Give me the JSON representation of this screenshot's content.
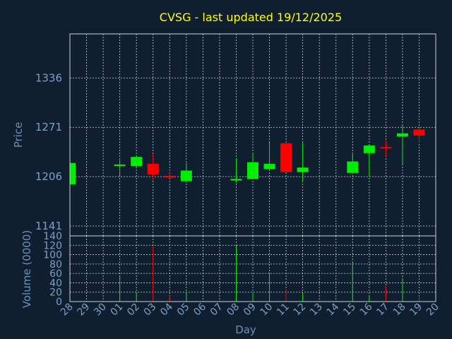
{
  "chart_data": [
    {
      "type": "candlestick",
      "title": "CVSG - last updated 19/12/2025",
      "ylabel": "Price",
      "ylim": [
        1128,
        1394
      ],
      "yticks": [
        1141,
        1206,
        1271,
        1336
      ],
      "grid": true,
      "categories": [
        "28",
        "29",
        "30",
        "01",
        "02",
        "03",
        "04",
        "05",
        "06",
        "07",
        "08",
        "09",
        "10",
        "11",
        "12",
        "13",
        "14",
        "15",
        "16",
        "17",
        "18",
        "19",
        "20"
      ],
      "candles": [
        {
          "day": "28",
          "open": 1196,
          "high": 1225,
          "low": 1196,
          "close": 1224
        },
        {
          "day": "01",
          "open": 1221,
          "high": 1228,
          "low": 1208,
          "close": 1222
        },
        {
          "day": "02",
          "open": 1220,
          "high": 1233,
          "low": 1217,
          "close": 1232
        },
        {
          "day": "03",
          "open": 1223,
          "high": 1236,
          "low": 1201,
          "close": 1209
        },
        {
          "day": "04",
          "open": 1207,
          "high": 1211,
          "low": 1204,
          "close": 1206
        },
        {
          "day": "05",
          "open": 1200,
          "high": 1224,
          "low": 1198,
          "close": 1214
        },
        {
          "day": "08",
          "open": 1201,
          "high": 1230,
          "low": 1198,
          "close": 1203
        },
        {
          "day": "09",
          "open": 1203,
          "high": 1236,
          "low": 1203,
          "close": 1225
        },
        {
          "day": "10",
          "open": 1216,
          "high": 1251,
          "low": 1216,
          "close": 1223
        },
        {
          "day": "11",
          "open": 1250,
          "high": 1250,
          "low": 1212,
          "close": 1212
        },
        {
          "day": "12",
          "open": 1212,
          "high": 1251,
          "low": 1200,
          "close": 1218
        },
        {
          "day": "15",
          "open": 1211,
          "high": 1238,
          "low": 1211,
          "close": 1226
        },
        {
          "day": "16",
          "open": 1237,
          "high": 1247,
          "low": 1206,
          "close": 1247
        },
        {
          "day": "17",
          "open": 1245,
          "high": 1254,
          "low": 1233,
          "close": 1244
        },
        {
          "day": "18",
          "open": 1259,
          "high": 1273,
          "low": 1223,
          "close": 1263
        },
        {
          "day": "19",
          "open": 1268,
          "high": 1270,
          "low": 1251,
          "close": 1260
        }
      ]
    },
    {
      "type": "bar",
      "ylabel": "Volume (0000)",
      "xlabel": "Day",
      "ylim": [
        0,
        140
      ],
      "yticks": [
        0,
        20,
        40,
        60,
        80,
        100,
        120,
        140
      ],
      "categories": [
        "28",
        "29",
        "30",
        "01",
        "02",
        "03",
        "04",
        "05",
        "06",
        "07",
        "08",
        "09",
        "10",
        "11",
        "12",
        "13",
        "14",
        "15",
        "16",
        "17",
        "18",
        "19",
        "20"
      ],
      "bars": [
        {
          "day": "01",
          "value": 55,
          "direction": "up"
        },
        {
          "day": "02",
          "value": 20,
          "direction": "up"
        },
        {
          "day": "03",
          "value": 118,
          "direction": "down"
        },
        {
          "day": "04",
          "value": 12,
          "direction": "down"
        },
        {
          "day": "05",
          "value": 20,
          "direction": "up"
        },
        {
          "day": "08",
          "value": 120,
          "direction": "up"
        },
        {
          "day": "09",
          "value": 20,
          "direction": "up"
        },
        {
          "day": "10",
          "value": 62,
          "direction": "up"
        },
        {
          "day": "11",
          "value": 25,
          "direction": "down"
        },
        {
          "day": "12",
          "value": 18,
          "direction": "up"
        },
        {
          "day": "15",
          "value": 85,
          "direction": "up"
        },
        {
          "day": "16",
          "value": 12,
          "direction": "up"
        },
        {
          "day": "17",
          "value": 33,
          "direction": "down"
        },
        {
          "day": "18",
          "value": 50,
          "direction": "up"
        },
        {
          "day": "19",
          "value": 12,
          "direction": "down"
        }
      ]
    }
  ],
  "colors": {
    "up": "#00ee00",
    "down": "#ff0000",
    "background": "#0f1f30",
    "grid": "#c8d0d8",
    "title": "#ffff00",
    "text": "#7f9fc4"
  }
}
